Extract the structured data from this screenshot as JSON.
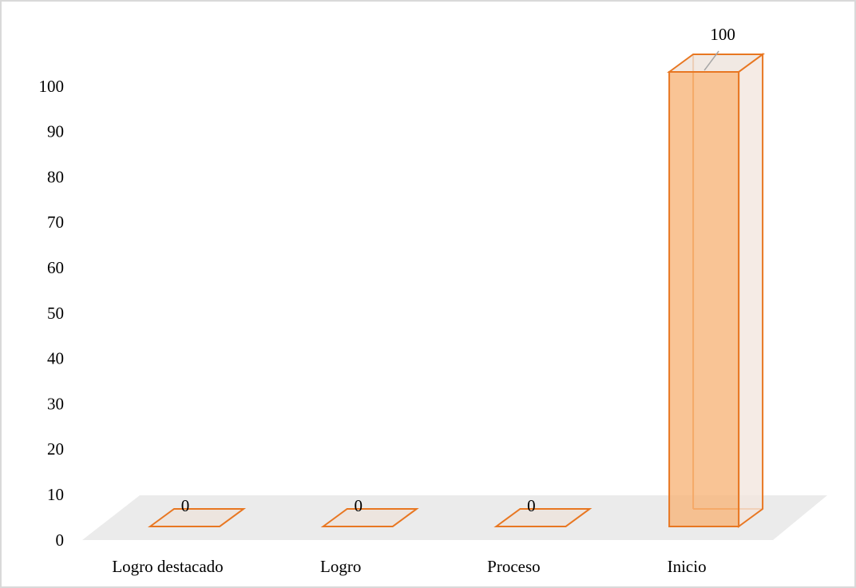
{
  "chart_data": {
    "type": "bar3d",
    "categories": [
      "Logro destacado",
      "Logro",
      "Proceso",
      "Inicio"
    ],
    "values": [
      0,
      0,
      0,
      100
    ],
    "color": "#e87722",
    "ylim": [
      0,
      100
    ],
    "yticks": [
      0,
      10,
      20,
      30,
      40,
      50,
      60,
      70,
      80,
      90,
      100
    ]
  }
}
